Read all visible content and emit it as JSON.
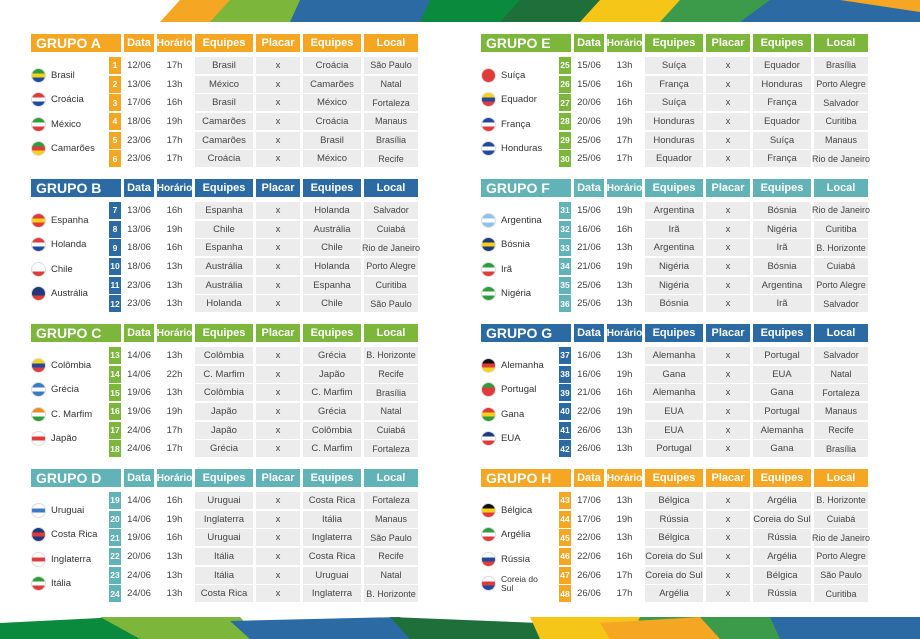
{
  "headers": {
    "data": "Data",
    "horario": "Horário",
    "equipes": "Equipes",
    "placar": "Placar",
    "local": "Local"
  },
  "groups": [
    {
      "name": "GRUPO A",
      "teams": [
        "Brasil",
        "Croácia",
        "México",
        "Camarões"
      ],
      "matches": [
        {
          "n": "1",
          "date": "12/06",
          "time": "17h",
          "t1": "Brasil",
          "score": "x",
          "t2": "Croácia",
          "loc": "São Paulo"
        },
        {
          "n": "2",
          "date": "13/06",
          "time": "13h",
          "t1": "México",
          "score": "x",
          "t2": "Camarões",
          "loc": "Natal"
        },
        {
          "n": "3",
          "date": "17/06",
          "time": "16h",
          "t1": "Brasil",
          "score": "x",
          "t2": "México",
          "loc": "Fortaleza"
        },
        {
          "n": "4",
          "date": "18/06",
          "time": "19h",
          "t1": "Camarões",
          "score": "x",
          "t2": "Croácia",
          "loc": "Manaus"
        },
        {
          "n": "5",
          "date": "23/06",
          "time": "17h",
          "t1": "Camarões",
          "score": "x",
          "t2": "Brasil",
          "loc": "Brasília"
        },
        {
          "n": "6",
          "date": "23/06",
          "time": "17h",
          "t1": "Croácia",
          "score": "x",
          "t2": "México",
          "loc": "Recife"
        }
      ]
    },
    {
      "name": "GRUPO B",
      "teams": [
        "Espanha",
        "Holanda",
        "Chile",
        "Austrália"
      ],
      "matches": [
        {
          "n": "7",
          "date": "13/06",
          "time": "16h",
          "t1": "Espanha",
          "score": "x",
          "t2": "Holanda",
          "loc": "Salvador"
        },
        {
          "n": "8",
          "date": "13/06",
          "time": "19h",
          "t1": "Chile",
          "score": "x",
          "t2": "Austrália",
          "loc": "Cuiabá"
        },
        {
          "n": "9",
          "date": "18/06",
          "time": "16h",
          "t1": "Espanha",
          "score": "x",
          "t2": "Chile",
          "loc": "Rio de Janeiro"
        },
        {
          "n": "10",
          "date": "18/06",
          "time": "13h",
          "t1": "Austrália",
          "score": "x",
          "t2": "Holanda",
          "loc": "Porto Alegre"
        },
        {
          "n": "11",
          "date": "23/06",
          "time": "13h",
          "t1": "Austrália",
          "score": "x",
          "t2": "Espanha",
          "loc": "Curitiba"
        },
        {
          "n": "12",
          "date": "23/06",
          "time": "13h",
          "t1": "Holanda",
          "score": "x",
          "t2": "Chile",
          "loc": "São Paulo"
        }
      ]
    },
    {
      "name": "GRUPO C",
      "teams": [
        "Colômbia",
        "Grécia",
        "C. Marfim",
        "Japão"
      ],
      "matches": [
        {
          "n": "13",
          "date": "14/06",
          "time": "13h",
          "t1": "Colômbia",
          "score": "x",
          "t2": "Grécia",
          "loc": "B. Horizonte"
        },
        {
          "n": "14",
          "date": "14/06",
          "time": "22h",
          "t1": "C. Marfim",
          "score": "x",
          "t2": "Japão",
          "loc": "Recife"
        },
        {
          "n": "15",
          "date": "19/06",
          "time": "13h",
          "t1": "Colômbia",
          "score": "x",
          "t2": "C. Marfim",
          "loc": "Brasília"
        },
        {
          "n": "16",
          "date": "19/06",
          "time": "19h",
          "t1": "Japão",
          "score": "x",
          "t2": "Grécia",
          "loc": "Natal"
        },
        {
          "n": "17",
          "date": "24/06",
          "time": "17h",
          "t1": "Japão",
          "score": "x",
          "t2": "Colômbia",
          "loc": "Cuiabá"
        },
        {
          "n": "18",
          "date": "24/06",
          "time": "17h",
          "t1": "Grécia",
          "score": "x",
          "t2": "C. Marfim",
          "loc": "Fortaleza"
        }
      ]
    },
    {
      "name": "GRUPO D",
      "teams": [
        "Uruguai",
        "Costa Rica",
        "Inglaterra",
        "Itália"
      ],
      "matches": [
        {
          "n": "19",
          "date": "14/06",
          "time": "16h",
          "t1": "Uruguai",
          "score": "x",
          "t2": "Costa Rica",
          "loc": "Fortaleza"
        },
        {
          "n": "20",
          "date": "14/06",
          "time": "19h",
          "t1": "Inglaterra",
          "score": "x",
          "t2": "Itália",
          "loc": "Manaus"
        },
        {
          "n": "21",
          "date": "19/06",
          "time": "16h",
          "t1": "Uruguai",
          "score": "x",
          "t2": "Inglaterra",
          "loc": "São Paulo"
        },
        {
          "n": "22",
          "date": "20/06",
          "time": "13h",
          "t1": "Itália",
          "score": "x",
          "t2": "Costa Rica",
          "loc": "Recife"
        },
        {
          "n": "23",
          "date": "24/06",
          "time": "13h",
          "t1": "Itália",
          "score": "x",
          "t2": "Uruguai",
          "loc": "Natal"
        },
        {
          "n": "24",
          "date": "24/06",
          "time": "13h",
          "t1": "Costa Rica",
          "score": "x",
          "t2": "Inglaterra",
          "loc": "B. Horizonte"
        }
      ]
    },
    {
      "name": "GRUPO E",
      "teams": [
        "Suíça",
        "Equador",
        "França",
        "Honduras"
      ],
      "matches": [
        {
          "n": "25",
          "date": "15/06",
          "time": "13h",
          "t1": "Suíça",
          "score": "x",
          "t2": "Equador",
          "loc": "Brasília"
        },
        {
          "n": "26",
          "date": "15/06",
          "time": "16h",
          "t1": "França",
          "score": "x",
          "t2": "Honduras",
          "loc": "Porto Alegre"
        },
        {
          "n": "27",
          "date": "20/06",
          "time": "16h",
          "t1": "Suíça",
          "score": "x",
          "t2": "França",
          "loc": "Salvador"
        },
        {
          "n": "28",
          "date": "20/06",
          "time": "19h",
          "t1": "Honduras",
          "score": "x",
          "t2": "Equador",
          "loc": "Curitiba"
        },
        {
          "n": "29",
          "date": "25/06",
          "time": "17h",
          "t1": "Honduras",
          "score": "x",
          "t2": "Suíça",
          "loc": "Manaus"
        },
        {
          "n": "30",
          "date": "25/06",
          "time": "17h",
          "t1": "Equador",
          "score": "x",
          "t2": "França",
          "loc": "Rio de Janeiro"
        }
      ]
    },
    {
      "name": "GRUPO F",
      "teams": [
        "Argentina",
        "Bósnia",
        "Irã",
        "Nigéria"
      ],
      "matches": [
        {
          "n": "31",
          "date": "15/06",
          "time": "19h",
          "t1": "Argentina",
          "score": "x",
          "t2": "Bósnia",
          "loc": "Rio de Janeiro"
        },
        {
          "n": "32",
          "date": "16/06",
          "time": "16h",
          "t1": "Irã",
          "score": "x",
          "t2": "Nigéria",
          "loc": "Curitiba"
        },
        {
          "n": "33",
          "date": "21/06",
          "time": "13h",
          "t1": "Argentina",
          "score": "x",
          "t2": "Irã",
          "loc": "B. Horizonte"
        },
        {
          "n": "34",
          "date": "21/06",
          "time": "19h",
          "t1": "Nigéria",
          "score": "x",
          "t2": "Bósnia",
          "loc": "Cuiabá"
        },
        {
          "n": "35",
          "date": "25/06",
          "time": "13h",
          "t1": "Nigéria",
          "score": "x",
          "t2": "Argentina",
          "loc": "Porto Alegre"
        },
        {
          "n": "36",
          "date": "25/06",
          "time": "13h",
          "t1": "Bósnia",
          "score": "x",
          "t2": "Irã",
          "loc": "Salvador"
        }
      ]
    },
    {
      "name": "GRUPO G",
      "teams": [
        "Alemanha",
        "Portugal",
        "Gana",
        "EUA"
      ],
      "matches": [
        {
          "n": "37",
          "date": "16/06",
          "time": "13h",
          "t1": "Alemanha",
          "score": "x",
          "t2": "Portugal",
          "loc": "Salvador"
        },
        {
          "n": "38",
          "date": "16/06",
          "time": "19h",
          "t1": "Gana",
          "score": "x",
          "t2": "EUA",
          "loc": "Natal"
        },
        {
          "n": "39",
          "date": "21/06",
          "time": "16h",
          "t1": "Alemanha",
          "score": "x",
          "t2": "Gana",
          "loc": "Fortaleza"
        },
        {
          "n": "40",
          "date": "22/06",
          "time": "19h",
          "t1": "EUA",
          "score": "x",
          "t2": "Portugal",
          "loc": "Manaus"
        },
        {
          "n": "41",
          "date": "26/06",
          "time": "13h",
          "t1": "EUA",
          "score": "x",
          "t2": "Alemanha",
          "loc": "Recife"
        },
        {
          "n": "42",
          "date": "26/06",
          "time": "13h",
          "t1": "Portugal",
          "score": "x",
          "t2": "Gana",
          "loc": "Brasília"
        }
      ]
    },
    {
      "name": "GRUPO H",
      "teams": [
        "Bélgica",
        "Argélia",
        "Rússia",
        "Coreia do Sul"
      ],
      "matches": [
        {
          "n": "43",
          "date": "17/06",
          "time": "13h",
          "t1": "Bélgica",
          "score": "x",
          "t2": "Argélia",
          "loc": "B. Horizonte"
        },
        {
          "n": "44",
          "date": "17/06",
          "time": "19h",
          "t1": "Rússia",
          "score": "x",
          "t2": "Coreia do Sul",
          "loc": "Cuiabá"
        },
        {
          "n": "45",
          "date": "22/06",
          "time": "13h",
          "t1": "Bélgica",
          "score": "x",
          "t2": "Rússia",
          "loc": "Rio de Janeiro"
        },
        {
          "n": "46",
          "date": "22/06",
          "time": "16h",
          "t1": "Coreia do Sul",
          "score": "x",
          "t2": "Argélia",
          "loc": "Porto Alegre"
        },
        {
          "n": "47",
          "date": "26/06",
          "time": "17h",
          "t1": "Coreia do Sul",
          "score": "x",
          "t2": "Bélgica",
          "loc": "São Paulo"
        },
        {
          "n": "48",
          "date": "26/06",
          "time": "17h",
          "t1": "Argélia",
          "score": "x",
          "t2": "Rússia",
          "loc": "Curitiba"
        }
      ]
    }
  ],
  "colors": {
    "orange": "#f5a623",
    "blue": "#2b6aa3",
    "green": "#7cb63b",
    "teal": "#62b3b7"
  }
}
